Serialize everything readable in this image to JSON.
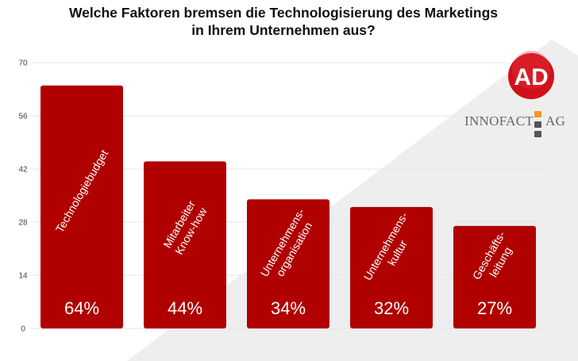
{
  "title_line1": "Welche Faktoren bremsen die Technologisierung des Marketings",
  "title_line2": "in Ihrem Unternehmen aus?",
  "brand": {
    "logo_text": "AD",
    "company": "INNOFACT",
    "suffix": "AG",
    "logo_color": "#d0111b",
    "square_colors": [
      "#f0962a",
      "#555555",
      "#555555"
    ]
  },
  "colors": {
    "bar": "#b00000",
    "background_shape": "#eeeeee"
  },
  "chart_data": {
    "type": "bar",
    "title": "Welche Faktoren bremsen die Technologisierung des Marketings in Ihrem Unternehmen aus?",
    "categories": [
      [
        "Technologiebudget"
      ],
      [
        "Mitarbeiter",
        "Know-how"
      ],
      [
        "Unternehmens-",
        "organisation"
      ],
      [
        "Unternehmens-",
        "kultur"
      ],
      [
        "Geschäfts-",
        "leitung"
      ]
    ],
    "values": [
      64,
      44,
      34,
      32,
      27
    ],
    "value_labels": [
      "64%",
      "44%",
      "34%",
      "32%",
      "27%"
    ],
    "ylim": [
      0,
      70
    ],
    "yticks": [
      0,
      14,
      28,
      42,
      56,
      70
    ],
    "grid": true
  }
}
